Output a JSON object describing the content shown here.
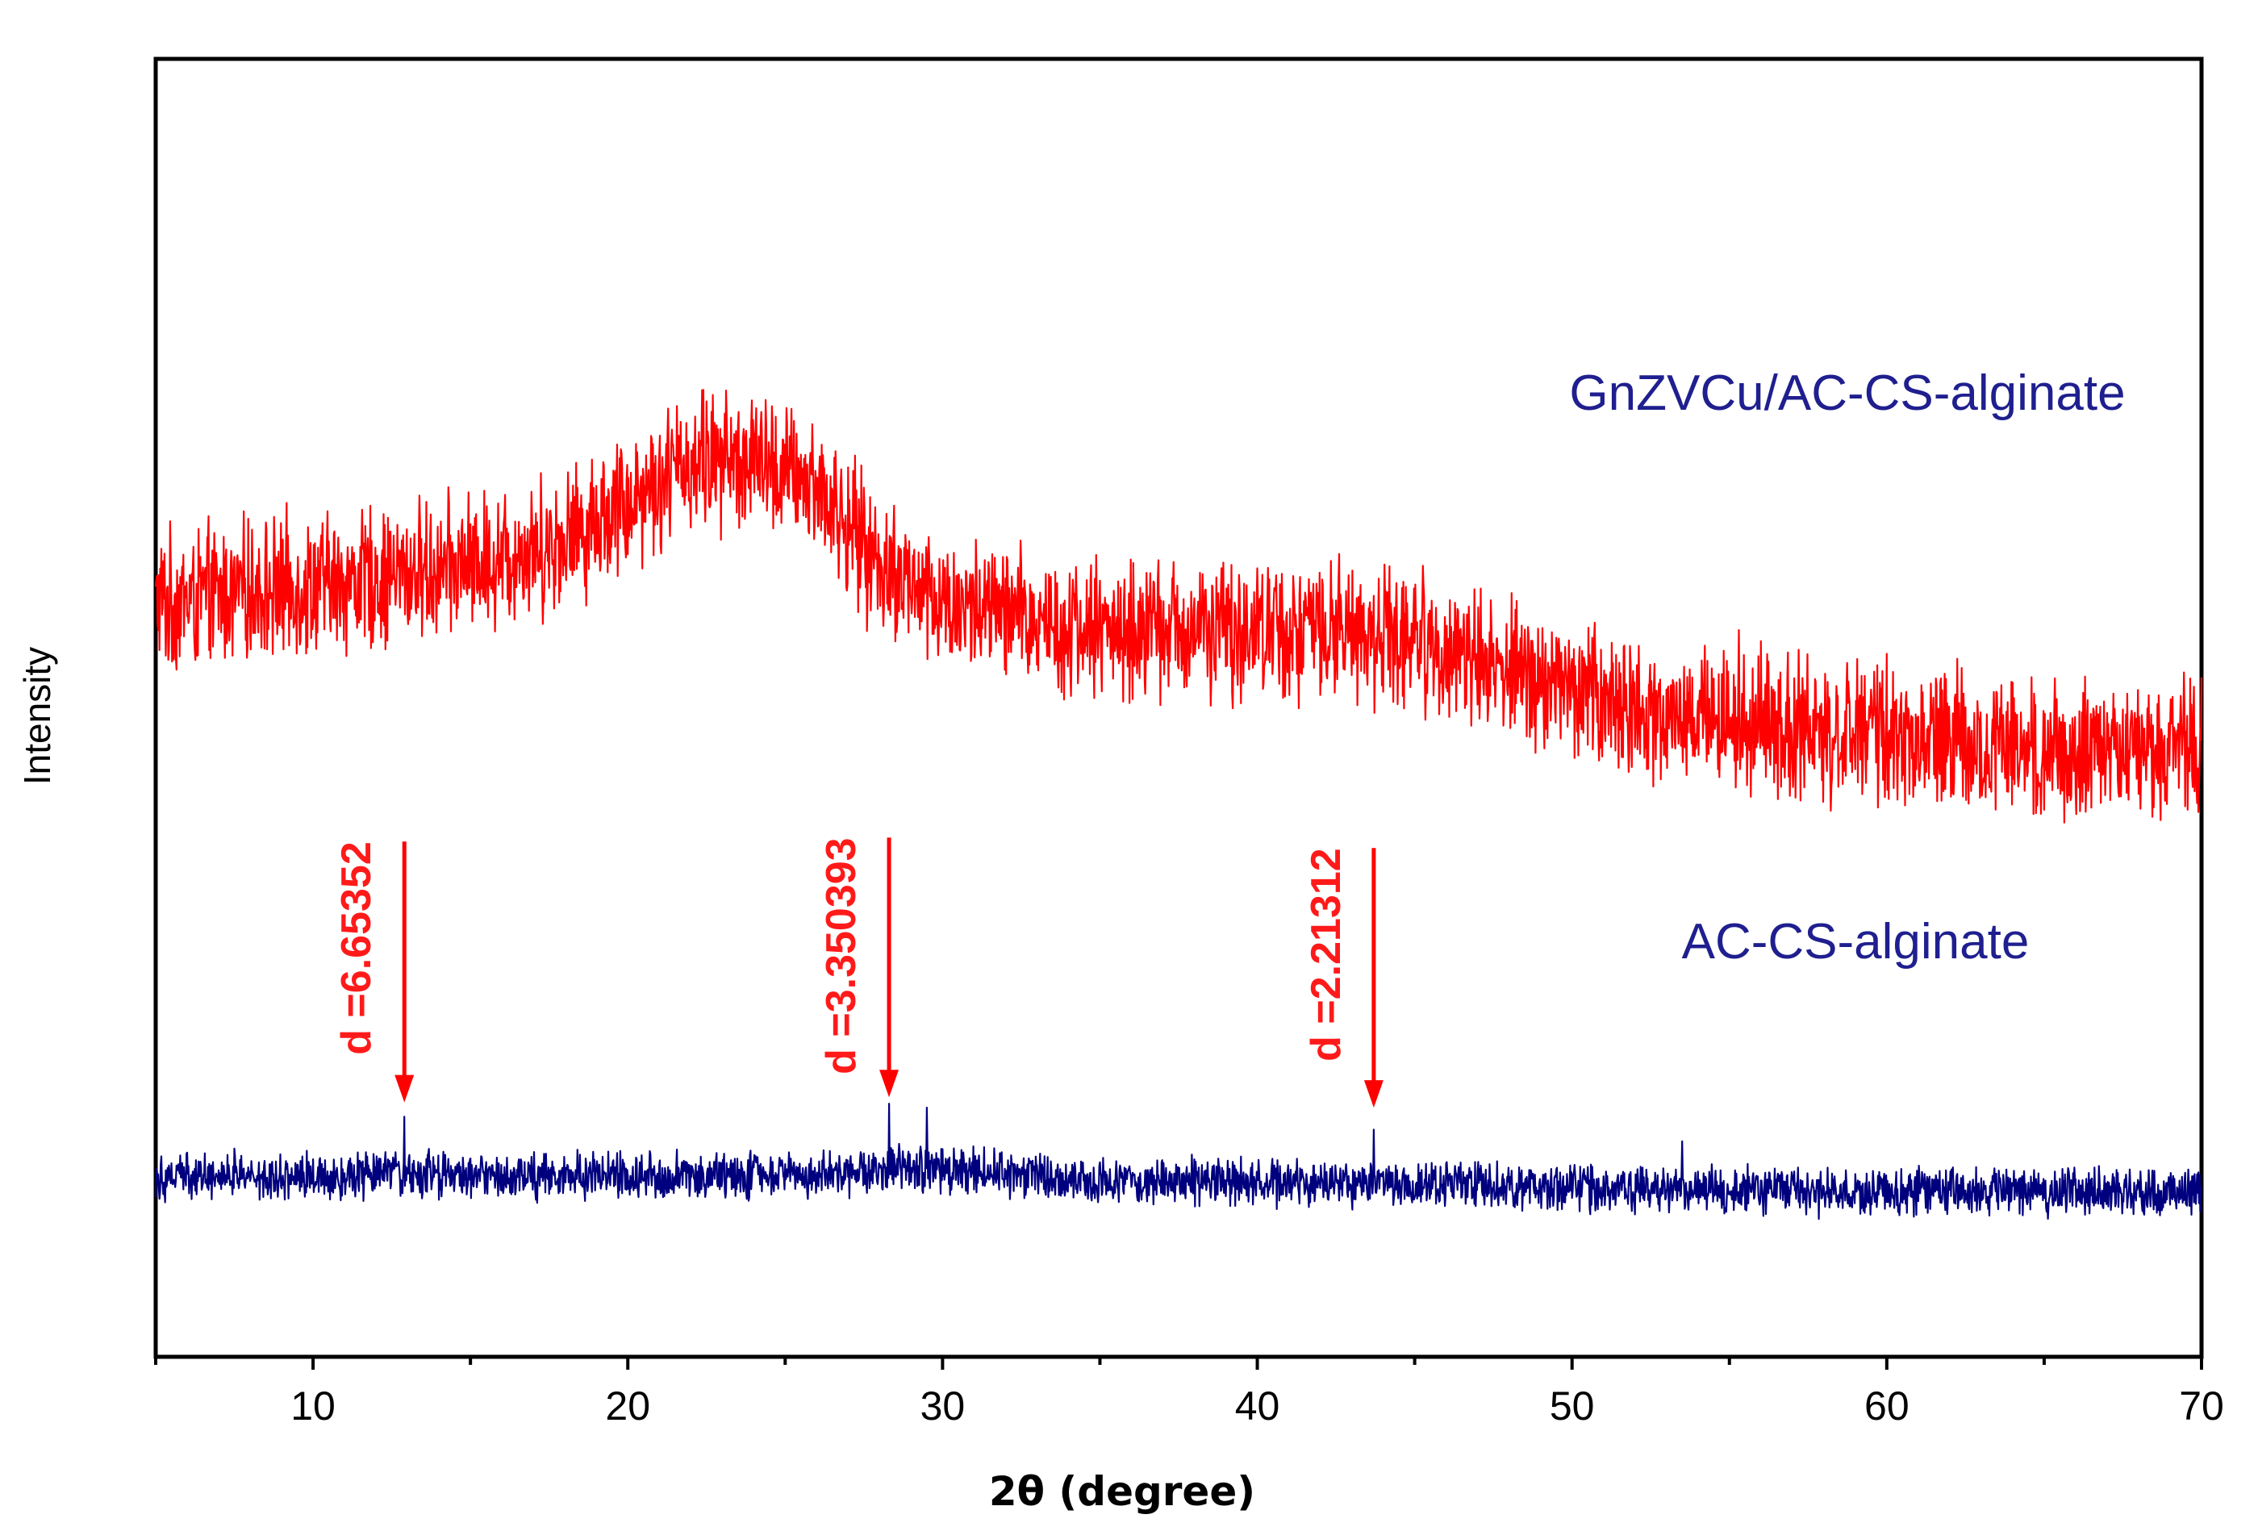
{
  "chart_data": {
    "type": "line",
    "title": "",
    "xlabel": "2θ (degree)",
    "ylabel": "Intensity",
    "xlim": [
      5,
      70
    ],
    "ylim": [
      0,
      100
    ],
    "x_ticks": [
      10,
      20,
      30,
      40,
      50,
      60,
      70
    ],
    "grid": false,
    "y_tick_labels_shown": false,
    "series": [
      {
        "name": "GnZVCu/AC-CS-alginate",
        "color": "#ff0000",
        "label_color": "#1a1a8c",
        "noise": 6.5,
        "baseline": [
          [
            5,
            58
          ],
          [
            8,
            59
          ],
          [
            12,
            60
          ],
          [
            15,
            61
          ],
          [
            18,
            63
          ],
          [
            20,
            66
          ],
          [
            22,
            69
          ],
          [
            24,
            69
          ],
          [
            26,
            67
          ],
          [
            28,
            61
          ],
          [
            30,
            58
          ],
          [
            35,
            56
          ],
          [
            40,
            56
          ],
          [
            44,
            56
          ],
          [
            48,
            53
          ],
          [
            52,
            50
          ],
          [
            55,
            49
          ],
          [
            60,
            48
          ],
          [
            65,
            47
          ],
          [
            70,
            47
          ]
        ]
      },
      {
        "name": "AC-CS-alginate",
        "color": "#00007f",
        "label_color": "#1a1a8c",
        "noise": 2.2,
        "baseline": [
          [
            5,
            14
          ],
          [
            15,
            14
          ],
          [
            25,
            14
          ],
          [
            29,
            14.5
          ],
          [
            35,
            13.6
          ],
          [
            45,
            13.3
          ],
          [
            55,
            12.8
          ],
          [
            70,
            12.6
          ]
        ]
      }
    ],
    "annotations": [
      {
        "text": "d =6.65352",
        "x": 12.9,
        "arrow_tip_y": 19.6,
        "arrow_top_y": 39.7
      },
      {
        "text": "d =3.350393",
        "x": 28.3,
        "arrow_tip_y": 20.0,
        "arrow_top_y": 40.0
      },
      {
        "text": "d =2.21312",
        "x": 43.7,
        "arrow_tip_y": 19.2,
        "arrow_top_y": 39.2
      }
    ],
    "peaks": [
      {
        "series": "AC-CS-alginate",
        "x": 12.9,
        "y": 18.5
      },
      {
        "series": "AC-CS-alginate",
        "x": 28.3,
        "y": 19.5
      },
      {
        "series": "AC-CS-alginate",
        "x": 29.5,
        "y": 19.2
      },
      {
        "series": "AC-CS-alginate",
        "x": 43.7,
        "y": 17.5
      },
      {
        "series": "AC-CS-alginate",
        "x": 53.5,
        "y": 16.6
      },
      {
        "series": "GnZVCu/AC-CS-alginate",
        "x": 22.4,
        "y": 74.5
      },
      {
        "series": "GnZVCu/AC-CS-alginate",
        "x": 55.3,
        "y": 56
      }
    ]
  }
}
